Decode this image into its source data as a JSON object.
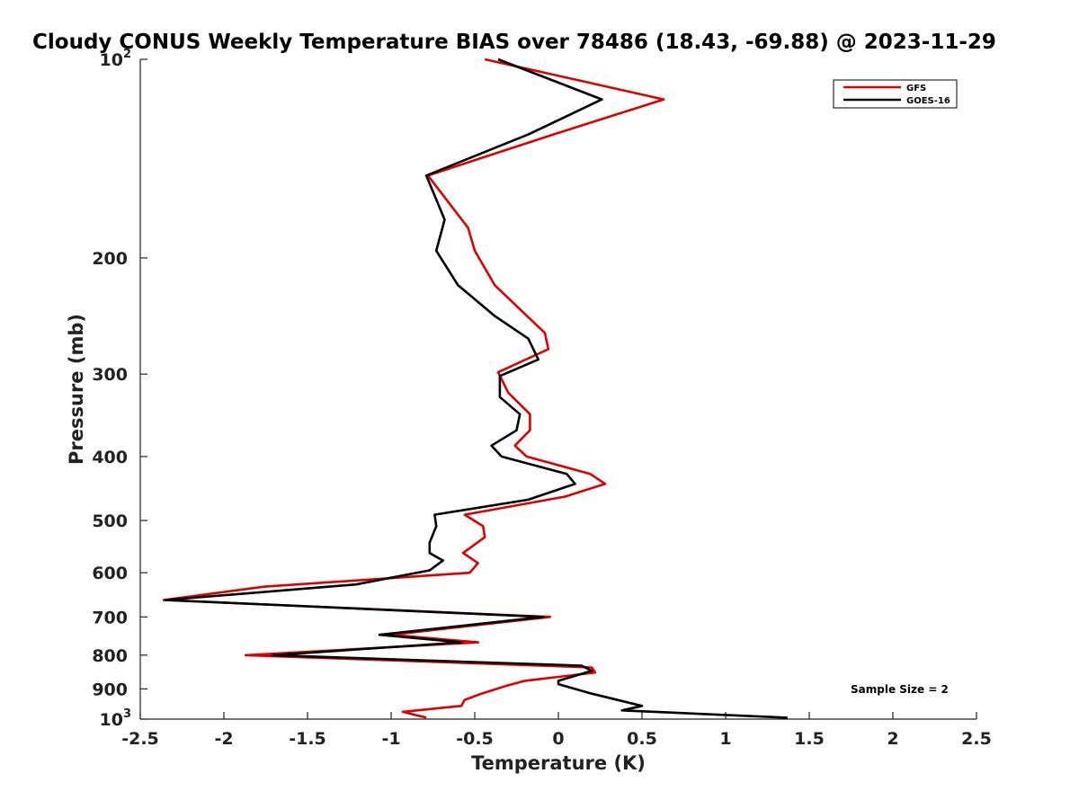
{
  "chart_data": {
    "type": "line",
    "title": "Cloudy CONUS Weekly Temperature BIAS over 78486 (18.43, -69.88) @ 2023-11-29",
    "xlabel": "Temperature (K)",
    "ylabel": "Pressure (mb)",
    "xlim": [
      -2.5,
      2.5
    ],
    "ylim": [
      1000,
      100
    ],
    "y_scale": "log",
    "y_reversed": true,
    "x_ticks": [
      "-2.5",
      "-2",
      "-1.5",
      "-1",
      "-0.5",
      "0",
      "0.5",
      "1",
      "1.5",
      "2",
      "2.5"
    ],
    "y_ticks": [
      {
        "value": 100,
        "base": "10",
        "exp": "2"
      },
      {
        "value": 200,
        "label": "200"
      },
      {
        "value": 300,
        "label": "300"
      },
      {
        "value": 400,
        "label": "400"
      },
      {
        "value": 500,
        "label": "500"
      },
      {
        "value": 600,
        "label": "600"
      },
      {
        "value": 700,
        "label": "700"
      },
      {
        "value": 800,
        "label": "800"
      },
      {
        "value": 900,
        "label": "900"
      },
      {
        "value": 1000,
        "base": "10",
        "exp": "3"
      }
    ],
    "grid": false,
    "legend_position": "top-right",
    "annotation": "Sample Size = 2",
    "series": [
      {
        "name": "GFS",
        "color": "#dd0000",
        "points": [
          [
            -0.44,
            100
          ],
          [
            0.63,
            115
          ],
          [
            -0.03,
            130
          ],
          [
            -0.78,
            150
          ],
          [
            -0.54,
            180
          ],
          [
            -0.5,
            195
          ],
          [
            -0.38,
            220
          ],
          [
            -0.08,
            260
          ],
          [
            -0.06,
            275
          ],
          [
            -0.36,
            298
          ],
          [
            -0.3,
            320
          ],
          [
            -0.17,
            345
          ],
          [
            -0.17,
            365
          ],
          [
            -0.26,
            385
          ],
          [
            -0.19,
            400
          ],
          [
            0.19,
            425
          ],
          [
            0.28,
            440
          ],
          [
            0.04,
            460
          ],
          [
            -0.56,
            490
          ],
          [
            -0.45,
            510
          ],
          [
            -0.44,
            530
          ],
          [
            -0.57,
            560
          ],
          [
            -0.48,
            580
          ],
          [
            -0.53,
            600
          ],
          [
            -1.76,
            630
          ],
          [
            -2.36,
            660
          ],
          [
            -0.05,
            700
          ],
          [
            -1.0,
            745
          ],
          [
            -0.48,
            765
          ],
          [
            -1.87,
            800
          ],
          [
            0.2,
            835
          ],
          [
            0.22,
            850
          ],
          [
            -0.2,
            875
          ],
          [
            -0.31,
            890
          ],
          [
            -0.46,
            915
          ],
          [
            -0.56,
            935
          ],
          [
            -0.58,
            955
          ],
          [
            -0.93,
            975
          ],
          [
            -0.79,
            995
          ]
        ]
      },
      {
        "name": "GOES-16",
        "color": "#000000",
        "points": [
          [
            -0.36,
            100
          ],
          [
            0.26,
            115
          ],
          [
            -0.18,
            130
          ],
          [
            -0.79,
            150
          ],
          [
            -0.68,
            175
          ],
          [
            -0.73,
            195
          ],
          [
            -0.6,
            220
          ],
          [
            -0.38,
            245
          ],
          [
            -0.18,
            265
          ],
          [
            -0.12,
            285
          ],
          [
            -0.35,
            302
          ],
          [
            -0.35,
            325
          ],
          [
            -0.23,
            345
          ],
          [
            -0.25,
            365
          ],
          [
            -0.4,
            385
          ],
          [
            -0.34,
            400
          ],
          [
            0.05,
            425
          ],
          [
            0.1,
            440
          ],
          [
            -0.18,
            465
          ],
          [
            -0.74,
            490
          ],
          [
            -0.73,
            510
          ],
          [
            -0.77,
            540
          ],
          [
            -0.77,
            560
          ],
          [
            -0.69,
            575
          ],
          [
            -0.77,
            595
          ],
          [
            -1.21,
            625
          ],
          [
            -2.35,
            660
          ],
          [
            -0.09,
            700
          ],
          [
            -1.07,
            745
          ],
          [
            -0.58,
            765
          ],
          [
            -1.71,
            800
          ],
          [
            0.14,
            830
          ],
          [
            0.2,
            845
          ],
          [
            0.0,
            875
          ],
          [
            0.0,
            885
          ],
          [
            0.2,
            915
          ],
          [
            0.5,
            955
          ],
          [
            0.38,
            970
          ],
          [
            1.37,
            995
          ]
        ]
      }
    ]
  }
}
